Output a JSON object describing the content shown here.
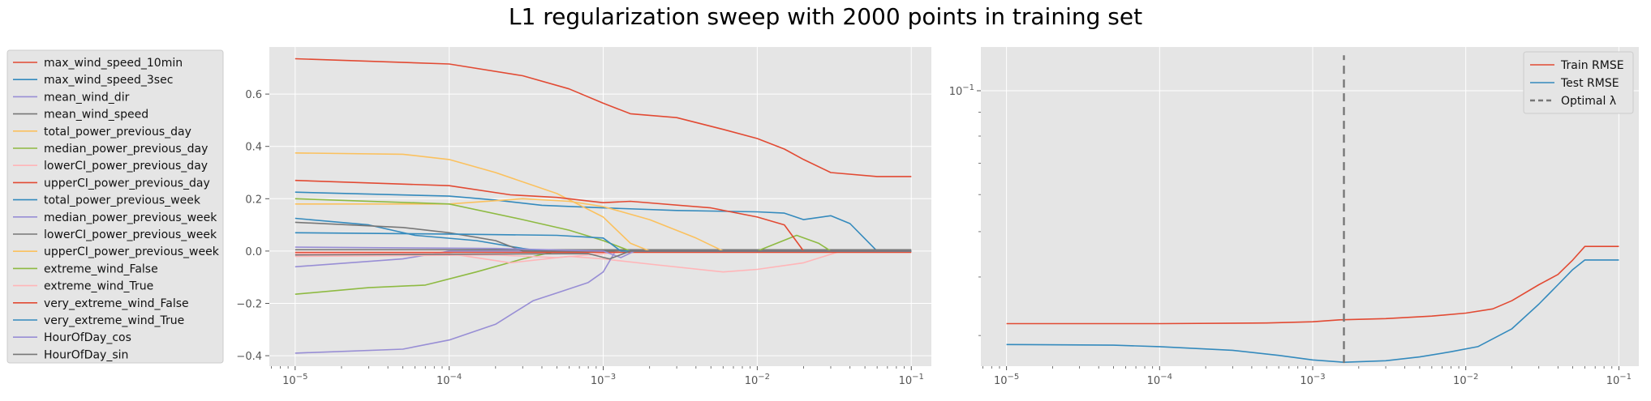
{
  "title": "L1 regularization sweep with 2000 points in training set",
  "chart_data": [
    {
      "type": "line",
      "xscale": "log",
      "xlim": [
        6.8e-06,
        0.135
      ],
      "ylim": [
        -0.44,
        0.78
      ],
      "xticks": [
        {
          "value": 1e-05,
          "base": "10",
          "exp": "−5"
        },
        {
          "value": 0.0001,
          "base": "10",
          "exp": "−4"
        },
        {
          "value": 0.001,
          "base": "10",
          "exp": "−3"
        },
        {
          "value": 0.01,
          "base": "10",
          "exp": "−2"
        },
        {
          "value": 0.1,
          "base": "10",
          "exp": "−1"
        }
      ],
      "yticks": [
        {
          "value": -0.4,
          "label": "−0.4"
        },
        {
          "value": -0.2,
          "label": "−0.2"
        },
        {
          "value": 0.0,
          "label": "0.0"
        },
        {
          "value": 0.2,
          "label": "0.2"
        },
        {
          "value": 0.4,
          "label": "0.4"
        },
        {
          "value": 0.6,
          "label": "0.6"
        }
      ],
      "grid": true,
      "legend_position": "outside-left",
      "series": [
        {
          "name": "max_wind_speed_10min",
          "color": "#E24A33",
          "points": [
            [
              1e-05,
              0.735
            ],
            [
              0.0001,
              0.715
            ],
            [
              0.0003,
              0.67
            ],
            [
              0.0006,
              0.62
            ],
            [
              0.001,
              0.565
            ],
            [
              0.0015,
              0.525
            ],
            [
              0.003,
              0.51
            ],
            [
              0.006,
              0.465
            ],
            [
              0.01,
              0.43
            ],
            [
              0.015,
              0.39
            ],
            [
              0.02,
              0.35
            ],
            [
              0.03,
              0.3
            ],
            [
              0.06,
              0.285
            ],
            [
              0.1,
              0.285
            ]
          ]
        },
        {
          "name": "max_wind_speed_3sec",
          "color": "#348ABD",
          "points": [
            [
              1e-05,
              0.225
            ],
            [
              0.0001,
              0.21
            ],
            [
              0.0002,
              0.195
            ],
            [
              0.0004,
              0.175
            ],
            [
              0.001,
              0.165
            ],
            [
              0.003,
              0.155
            ],
            [
              0.01,
              0.15
            ],
            [
              0.015,
              0.145
            ],
            [
              0.02,
              0.12
            ],
            [
              0.03,
              0.135
            ],
            [
              0.04,
              0.105
            ],
            [
              0.06,
              0.0
            ],
            [
              0.1,
              0.0
            ]
          ]
        },
        {
          "name": "mean_wind_dir",
          "color": "#988ED5",
          "points": [
            [
              1e-05,
              -0.06
            ],
            [
              5e-05,
              -0.03
            ],
            [
              0.0001,
              0.0
            ],
            [
              0.1,
              0.0
            ]
          ]
        },
        {
          "name": "mean_wind_speed",
          "color": "#777777",
          "points": [
            [
              1e-05,
              0.005
            ],
            [
              0.1,
              0.005
            ]
          ]
        },
        {
          "name": "total_power_previous_day",
          "color": "#FBC15E",
          "points": [
            [
              1e-05,
              0.375
            ],
            [
              5e-05,
              0.37
            ],
            [
              0.0001,
              0.35
            ],
            [
              0.0002,
              0.3
            ],
            [
              0.0005,
              0.22
            ],
            [
              0.001,
              0.13
            ],
            [
              0.0015,
              0.03
            ],
            [
              0.002,
              0.0
            ],
            [
              0.1,
              0.0
            ]
          ]
        },
        {
          "name": "median_power_previous_day",
          "color": "#8EBA42",
          "points": [
            [
              1e-05,
              -0.165
            ],
            [
              3e-05,
              -0.14
            ],
            [
              7e-05,
              -0.13
            ],
            [
              0.00015,
              -0.08
            ],
            [
              0.0003,
              -0.03
            ],
            [
              0.0005,
              0.0
            ],
            [
              0.01,
              0.0
            ],
            [
              0.018,
              0.06
            ],
            [
              0.025,
              0.03
            ],
            [
              0.03,
              0.0
            ],
            [
              0.1,
              0.0
            ]
          ]
        },
        {
          "name": "lowerCI_power_previous_day",
          "color": "#FFB5B8",
          "points": [
            [
              1e-05,
              -0.01
            ],
            [
              0.0001,
              -0.01
            ],
            [
              0.00025,
              -0.045
            ],
            [
              0.0006,
              -0.02
            ],
            [
              0.001,
              -0.03
            ],
            [
              0.002,
              -0.05
            ],
            [
              0.006,
              -0.08
            ],
            [
              0.01,
              -0.07
            ],
            [
              0.02,
              -0.045
            ],
            [
              0.035,
              0.0
            ],
            [
              0.1,
              0.0
            ]
          ]
        },
        {
          "name": "upperCI_power_previous_day",
          "color": "#E24A33",
          "points": [
            [
              1e-05,
              0.27
            ],
            [
              0.0001,
              0.25
            ],
            [
              0.00025,
              0.215
            ],
            [
              0.0005,
              0.205
            ],
            [
              0.001,
              0.185
            ],
            [
              0.0015,
              0.19
            ],
            [
              0.005,
              0.165
            ],
            [
              0.01,
              0.13
            ],
            [
              0.015,
              0.1
            ],
            [
              0.02,
              0.0
            ],
            [
              0.1,
              0.0
            ]
          ]
        },
        {
          "name": "total_power_previous_week",
          "color": "#348ABD",
          "points": [
            [
              1e-05,
              0.125
            ],
            [
              3e-05,
              0.1
            ],
            [
              6e-05,
              0.06
            ],
            [
              0.00015,
              0.04
            ],
            [
              0.0003,
              0.01
            ],
            [
              0.0004,
              0.0
            ],
            [
              0.1,
              0.0
            ]
          ]
        },
        {
          "name": "median_power_previous_week",
          "color": "#988ED5",
          "points": [
            [
              1e-05,
              -0.39
            ],
            [
              5e-05,
              -0.375
            ],
            [
              0.0001,
              -0.34
            ],
            [
              0.0002,
              -0.28
            ],
            [
              0.00035,
              -0.19
            ],
            [
              0.0005,
              -0.16
            ],
            [
              0.0008,
              -0.12
            ],
            [
              0.001,
              -0.08
            ],
            [
              0.0012,
              0.0
            ],
            [
              0.1,
              0.0
            ]
          ]
        },
        {
          "name": "lowerCI_power_previous_week",
          "color": "#777777",
          "points": [
            [
              1e-05,
              0.11
            ],
            [
              5e-05,
              0.09
            ],
            [
              0.0001,
              0.07
            ],
            [
              0.0002,
              0.04
            ],
            [
              0.0003,
              0.0
            ],
            [
              0.1,
              0.0
            ]
          ]
        },
        {
          "name": "upperCI_power_previous_week",
          "color": "#FBC15E",
          "points": [
            [
              1e-05,
              0.18
            ],
            [
              0.0001,
              0.18
            ],
            [
              0.0003,
              0.2
            ],
            [
              0.0006,
              0.19
            ],
            [
              0.001,
              0.17
            ],
            [
              0.002,
              0.12
            ],
            [
              0.004,
              0.05
            ],
            [
              0.006,
              0.0
            ],
            [
              0.1,
              0.0
            ]
          ]
        },
        {
          "name": "extreme_wind_False",
          "color": "#8EBA42",
          "points": [
            [
              1e-05,
              0.2
            ],
            [
              0.0001,
              0.18
            ],
            [
              0.0003,
              0.12
            ],
            [
              0.0006,
              0.08
            ],
            [
              0.001,
              0.04
            ],
            [
              0.0015,
              0.0
            ],
            [
              0.1,
              0.0
            ]
          ]
        },
        {
          "name": "extreme_wind_True",
          "color": "#FFB5B8",
          "points": [
            [
              1e-05,
              -0.02
            ],
            [
              0.0002,
              -0.015
            ],
            [
              0.0005,
              -0.025
            ],
            [
              0.001,
              -0.01
            ],
            [
              0.0015,
              0.0
            ],
            [
              0.1,
              0.0
            ]
          ]
        },
        {
          "name": "very_extreme_wind_False",
          "color": "#E24A33",
          "points": [
            [
              1e-05,
              -0.005
            ],
            [
              0.1,
              -0.005
            ]
          ]
        },
        {
          "name": "very_extreme_wind_True",
          "color": "#348ABD",
          "points": [
            [
              1e-05,
              0.07
            ],
            [
              0.0001,
              0.065
            ],
            [
              0.0005,
              0.06
            ],
            [
              0.001,
              0.05
            ],
            [
              0.0013,
              0.0
            ],
            [
              0.1,
              0.0
            ]
          ]
        },
        {
          "name": "HourOfDay_cos",
          "color": "#988ED5",
          "points": [
            [
              1e-05,
              0.015
            ],
            [
              0.0002,
              0.01
            ],
            [
              0.001,
              0.0
            ],
            [
              0.0013,
              -0.025
            ],
            [
              0.0016,
              0.0
            ],
            [
              0.1,
              0.0
            ]
          ]
        },
        {
          "name": "HourOfDay_sin",
          "color": "#777777",
          "points": [
            [
              1e-05,
              -0.015
            ],
            [
              0.0008,
              -0.01
            ],
            [
              0.0011,
              -0.03
            ],
            [
              0.0015,
              0.0
            ],
            [
              0.1,
              0.0
            ]
          ]
        }
      ]
    },
    {
      "type": "line",
      "xscale": "log",
      "yscale": "log",
      "xlim": [
        6.8e-06,
        0.135
      ],
      "ylim": [
        0.0258,
        0.124
      ],
      "xticks": [
        {
          "value": 1e-05,
          "base": "10",
          "exp": "−5"
        },
        {
          "value": 0.0001,
          "base": "10",
          "exp": "−4"
        },
        {
          "value": 0.001,
          "base": "10",
          "exp": "−3"
        },
        {
          "value": 0.01,
          "base": "10",
          "exp": "−2"
        },
        {
          "value": 0.1,
          "base": "10",
          "exp": "−1"
        }
      ],
      "yticks": [
        {
          "value": 0.1,
          "base": "10",
          "exp": "−1"
        }
      ],
      "grid": true,
      "legend_position": "top-right",
      "series": [
        {
          "name": "Train RMSE",
          "color": "#E24A33",
          "dash": "none",
          "points": [
            [
              1e-05,
              0.0318
            ],
            [
              0.0001,
              0.0318
            ],
            [
              0.0005,
              0.0319
            ],
            [
              0.001,
              0.0321
            ],
            [
              0.0015,
              0.0324
            ],
            [
              0.003,
              0.0326
            ],
            [
              0.006,
              0.033
            ],
            [
              0.01,
              0.0335
            ],
            [
              0.015,
              0.0342
            ],
            [
              0.02,
              0.0356
            ],
            [
              0.03,
              0.0385
            ],
            [
              0.04,
              0.0405
            ],
            [
              0.05,
              0.0435
            ],
            [
              0.06,
              0.0465
            ],
            [
              0.1,
              0.0465
            ]
          ]
        },
        {
          "name": "Test RMSE",
          "color": "#348ABD",
          "dash": "none",
          "points": [
            [
              1e-05,
              0.0287
            ],
            [
              5e-05,
              0.0286
            ],
            [
              0.0001,
              0.0284
            ],
            [
              0.0003,
              0.0279
            ],
            [
              0.0006,
              0.0272
            ],
            [
              0.001,
              0.0266
            ],
            [
              0.0016,
              0.0263
            ],
            [
              0.003,
              0.0265
            ],
            [
              0.005,
              0.027
            ],
            [
              0.008,
              0.0277
            ],
            [
              0.012,
              0.0284
            ],
            [
              0.02,
              0.031
            ],
            [
              0.03,
              0.035
            ],
            [
              0.04,
              0.0385
            ],
            [
              0.05,
              0.0415
            ],
            [
              0.06,
              0.0435
            ],
            [
              0.1,
              0.0435
            ]
          ]
        },
        {
          "name": "Optimal λ",
          "color": "#777777",
          "dash": "10,7",
          "vertical_x": 0.0016,
          "points": [
            [
              0.0016,
              0.0262
            ],
            [
              0.0016,
              0.119
            ]
          ]
        }
      ]
    }
  ]
}
